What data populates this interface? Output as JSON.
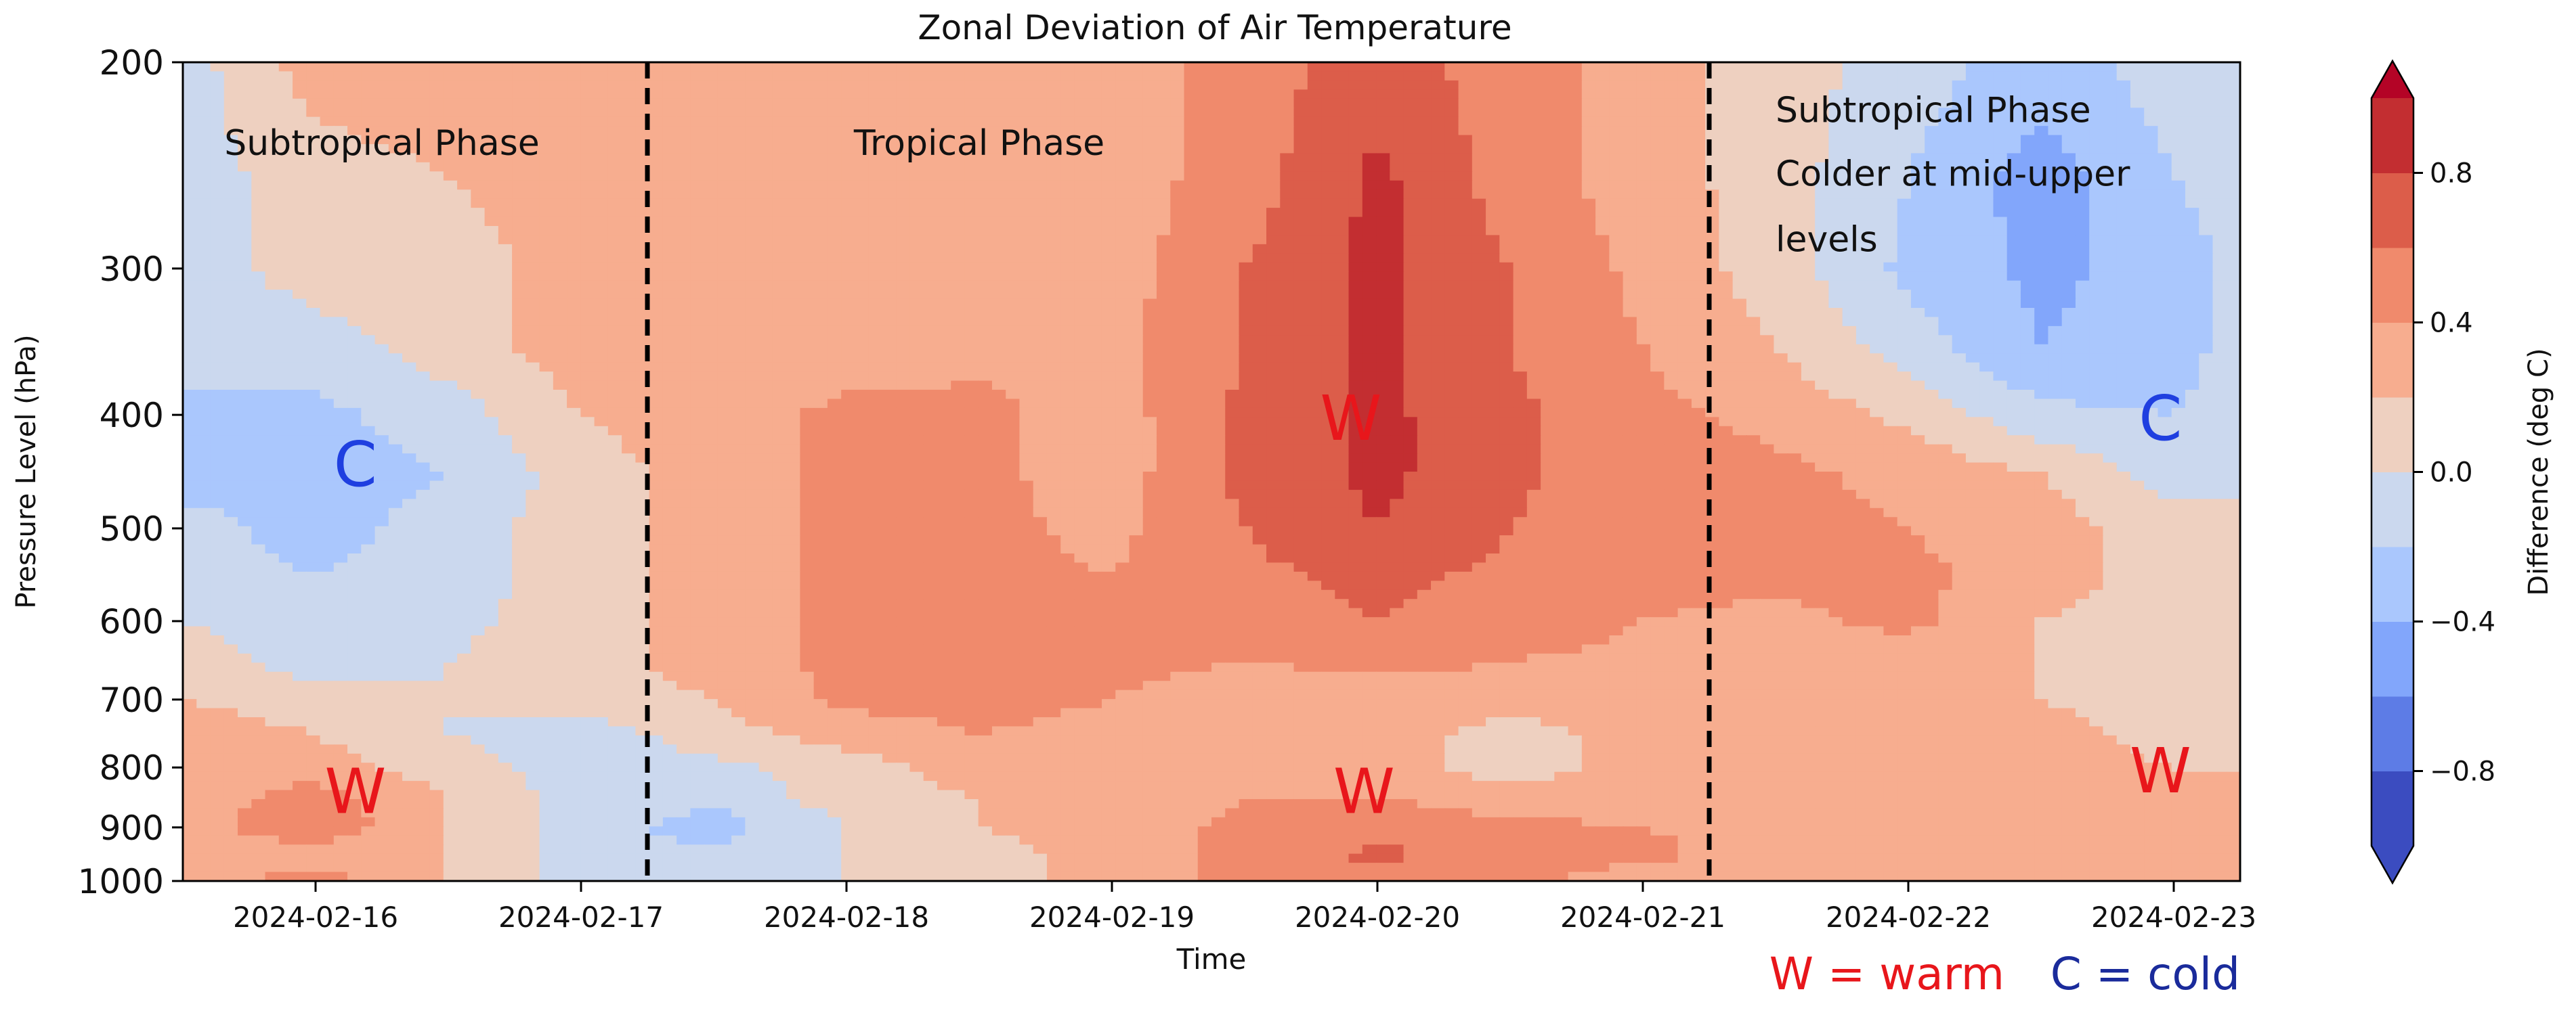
{
  "chart_data": {
    "type": "heatmap",
    "subtype": "filled contour, time vs pressure",
    "title": "Zonal Deviation of Air Temperature",
    "xlabel": "Time",
    "ylabel": "Pressure Level (hPa)",
    "x_ticks": [
      "2024-02-16",
      "2024-02-17",
      "2024-02-18",
      "2024-02-19",
      "2024-02-20",
      "2024-02-21",
      "2024-02-22",
      "2024-02-23"
    ],
    "x_range_days": [
      -0.5,
      7.25
    ],
    "y_ticks": [
      200,
      300,
      400,
      500,
      600,
      700,
      800,
      900,
      1000
    ],
    "y_range": [
      1000,
      200
    ],
    "y_scale": "log",
    "colorbar": {
      "label": "Difference (deg C)",
      "levels": [
        -1.0,
        -0.8,
        -0.6,
        -0.4,
        -0.2,
        0.0,
        0.2,
        0.4,
        0.6,
        0.8,
        1.0
      ],
      "colors": [
        "#3b4cc0",
        "#5d7ce6",
        "#82a6fb",
        "#aac7fd",
        "#cbd8ee",
        "#eed0c0",
        "#f7ad8f",
        "#f08a6c",
        "#dc5d4a",
        "#c32e31"
      ],
      "under_color": "#3b4cc0",
      "over_color": "#b40426",
      "tick_labels": [
        "−0.8",
        "−0.4",
        "0.0",
        "0.4",
        "0.8"
      ],
      "tick_values": [
        -0.8,
        -0.4,
        0.0,
        0.4,
        0.8
      ]
    },
    "grid": {
      "x_days": [
        -0.5,
        0.0,
        0.5,
        1.0,
        1.5,
        2.0,
        2.5,
        3.0,
        3.5,
        4.0,
        4.5,
        5.0,
        5.5,
        6.0,
        6.5,
        7.0,
        7.25
      ],
      "pressure": [
        200,
        250,
        300,
        350,
        400,
        450,
        500,
        550,
        600,
        650,
        700,
        750,
        800,
        850,
        900,
        950,
        1000
      ],
      "values": [
        [
          -0.1,
          0.3,
          0.35,
          0.35,
          0.3,
          0.3,
          0.3,
          0.3,
          0.5,
          0.7,
          0.5,
          0.3,
          0.1,
          -0.1,
          -0.3,
          -0.1,
          -0.1
        ],
        [
          -0.1,
          0.1,
          0.2,
          0.3,
          0.3,
          0.3,
          0.3,
          0.3,
          0.5,
          0.85,
          0.5,
          0.3,
          0.1,
          -0.2,
          -0.5,
          -0.2,
          -0.1
        ],
        [
          -0.1,
          0.1,
          0.1,
          0.3,
          0.3,
          0.3,
          0.3,
          0.3,
          0.6,
          0.85,
          0.6,
          0.35,
          0.1,
          -0.25,
          -0.45,
          -0.3,
          -0.15
        ],
        [
          -0.2,
          -0.1,
          0.1,
          0.3,
          0.3,
          0.3,
          0.35,
          0.35,
          0.6,
          0.85,
          0.6,
          0.4,
          0.2,
          -0.1,
          -0.4,
          -0.3,
          -0.1
        ],
        [
          -0.2,
          -0.25,
          -0.1,
          0.2,
          0.3,
          0.45,
          0.45,
          0.3,
          0.65,
          0.85,
          0.65,
          0.45,
          0.35,
          0.15,
          -0.15,
          -0.2,
          -0.1
        ],
        [
          -0.3,
          -0.3,
          -0.2,
          0.1,
          0.3,
          0.45,
          0.45,
          0.3,
          0.65,
          0.85,
          0.65,
          0.45,
          0.45,
          0.35,
          0.2,
          -0.1,
          -0.1
        ],
        [
          -0.1,
          -0.3,
          -0.1,
          0.1,
          0.3,
          0.45,
          0.45,
          0.35,
          0.6,
          0.8,
          0.6,
          0.45,
          0.45,
          0.4,
          0.3,
          0.1,
          0.1
        ],
        [
          -0.1,
          -0.2,
          -0.1,
          0.1,
          0.3,
          0.45,
          0.45,
          0.4,
          0.55,
          0.65,
          0.55,
          0.45,
          0.45,
          0.45,
          0.3,
          0.1,
          0.1
        ],
        [
          0.0,
          -0.1,
          -0.05,
          0.1,
          0.3,
          0.45,
          0.55,
          0.45,
          0.5,
          0.6,
          0.5,
          0.4,
          0.35,
          0.45,
          0.2,
          0.1,
          0.1
        ],
        [
          0.1,
          -0.1,
          0.0,
          0.1,
          0.3,
          0.45,
          0.45,
          0.45,
          0.4,
          0.45,
          0.4,
          0.35,
          0.3,
          0.3,
          0.2,
          0.1,
          0.1
        ],
        [
          0.2,
          0.1,
          0.0,
          0.1,
          0.2,
          0.45,
          0.45,
          0.4,
          0.3,
          0.3,
          0.3,
          0.3,
          0.3,
          0.3,
          0.2,
          0.1,
          0.1
        ],
        [
          0.3,
          0.2,
          0.0,
          -0.1,
          0.1,
          0.3,
          0.4,
          0.35,
          0.3,
          0.3,
          0.1,
          0.3,
          0.3,
          0.3,
          0.3,
          0.1,
          0.1
        ],
        [
          0.3,
          0.3,
          0.1,
          -0.1,
          -0.05,
          0.1,
          0.3,
          0.3,
          0.3,
          0.3,
          0.1,
          0.3,
          0.3,
          0.3,
          0.3,
          0.2,
          0.2
        ],
        [
          0.3,
          0.5,
          0.2,
          -0.1,
          -0.15,
          0.1,
          0.2,
          0.3,
          0.4,
          0.4,
          0.3,
          0.3,
          0.3,
          0.3,
          0.3,
          0.25,
          0.3
        ],
        [
          0.3,
          0.55,
          0.2,
          -0.1,
          -0.3,
          0.0,
          0.2,
          0.3,
          0.45,
          0.55,
          0.45,
          0.4,
          0.35,
          0.3,
          0.3,
          0.25,
          0.3
        ],
        [
          0.3,
          0.3,
          0.2,
          -0.1,
          -0.15,
          0.0,
          0.1,
          0.3,
          0.45,
          0.65,
          0.5,
          0.45,
          0.3,
          0.3,
          0.3,
          0.25,
          0.3
        ],
        [
          0.3,
          0.5,
          0.2,
          -0.1,
          -0.05,
          0.0,
          0.1,
          0.3,
          0.45,
          0.5,
          0.45,
          0.3,
          0.3,
          0.3,
          0.2,
          0.25,
          0.3
        ]
      ]
    },
    "phase_dividers_days": [
      1.25,
      5.25
    ],
    "annotations": [
      {
        "text": "Subtropical Phase",
        "kind": "phase",
        "x_day": 0.25,
        "pressure": 240,
        "anchor": "middle"
      },
      {
        "text": "Tropical Phase",
        "kind": "phase",
        "x_day": 2.5,
        "pressure": 240,
        "anchor": "middle"
      },
      {
        "text": "Subtropical Phase",
        "kind": "phase",
        "x_day": 5.5,
        "pressure": 225,
        "anchor": "start"
      },
      {
        "text": "Colder at mid-upper",
        "kind": "phase",
        "x_day": 5.5,
        "pressure": 255,
        "anchor": "start"
      },
      {
        "text": "levels",
        "kind": "phase",
        "x_day": 5.5,
        "pressure": 290,
        "anchor": "start"
      },
      {
        "text": "C",
        "kind": "cold",
        "x_day": 0.15,
        "pressure": 460,
        "anchor": "middle"
      },
      {
        "text": "W",
        "kind": "warm",
        "x_day": 0.15,
        "pressure": 875,
        "anchor": "middle"
      },
      {
        "text": "W",
        "kind": "warm",
        "x_day": 3.9,
        "pressure": 420,
        "anchor": "middle"
      },
      {
        "text": "W",
        "kind": "warm",
        "x_day": 3.95,
        "pressure": 875,
        "anchor": "middle"
      },
      {
        "text": "C",
        "kind": "cold",
        "x_day": 6.95,
        "pressure": 420,
        "anchor": "middle"
      },
      {
        "text": "W",
        "kind": "warm",
        "x_day": 6.95,
        "pressure": 840,
        "anchor": "middle"
      }
    ],
    "legend": [
      {
        "text": "W = warm",
        "color": "#e8161b"
      },
      {
        "text": "C = cold",
        "color": "#1a2b9b"
      }
    ],
    "annotation_colors": {
      "phase": "#111111",
      "warm": "#e8161b",
      "cold": "#1f3fe0"
    }
  }
}
